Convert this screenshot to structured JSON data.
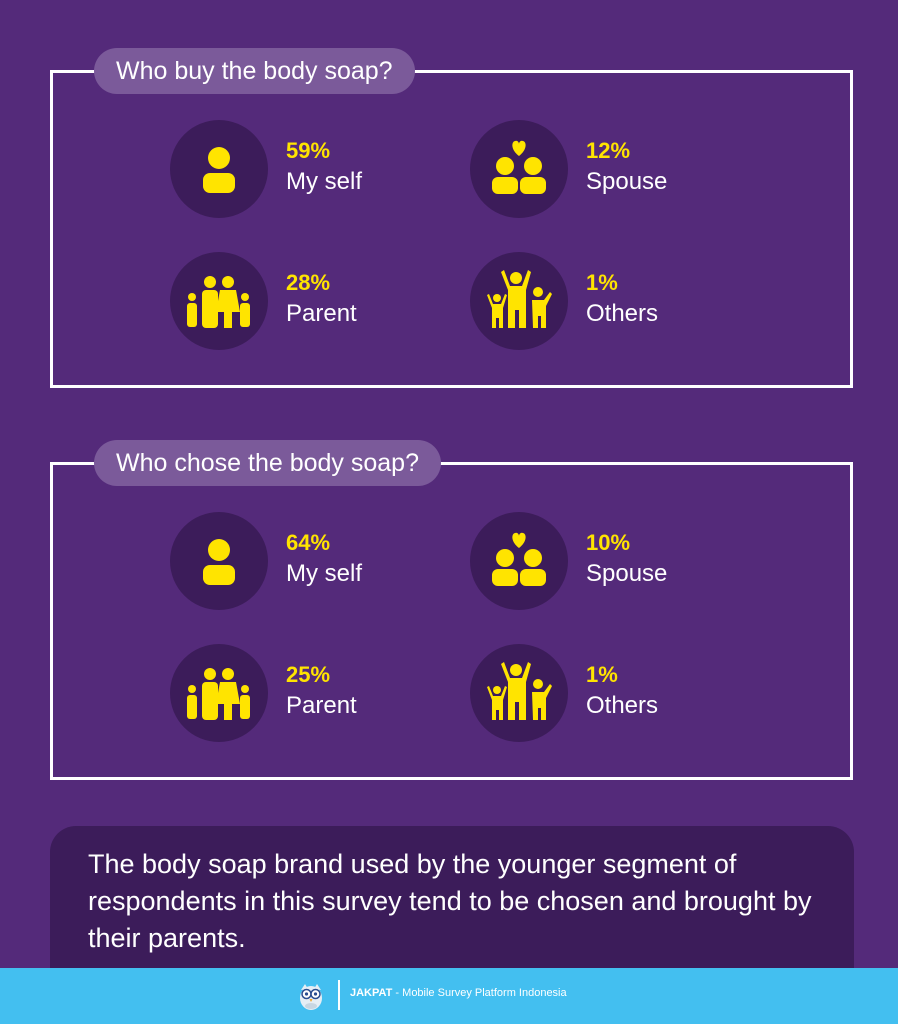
{
  "sections": [
    {
      "title": "Who buy the body soap?",
      "items": [
        {
          "percent": "59%",
          "label": "My self",
          "icon": "person-icon"
        },
        {
          "percent": "12%",
          "label": "Spouse",
          "icon": "couple-heart-icon"
        },
        {
          "percent": "28%",
          "label": "Parent",
          "icon": "family-icon"
        },
        {
          "percent": "1%",
          "label": "Others",
          "icon": "group-cheering-icon"
        }
      ]
    },
    {
      "title": "Who chose the body soap?",
      "items": [
        {
          "percent": "64%",
          "label": "My self",
          "icon": "person-icon"
        },
        {
          "percent": "10%",
          "label": "Spouse",
          "icon": "couple-heart-icon"
        },
        {
          "percent": "25%",
          "label": "Parent",
          "icon": "family-icon"
        },
        {
          "percent": "1%",
          "label": "Others",
          "icon": "group-cheering-icon"
        }
      ]
    }
  ],
  "conclusion": "The body soap brand used by the younger segment of respondents in this survey tend to be chosen and brought by their parents.",
  "footer": {
    "brand": "JAKPAT",
    "tagline": " - Mobile Survey Platform Indonesia"
  },
  "colors": {
    "background": "#542a7a",
    "icon_circle": "#3c1c5a",
    "accent_yellow": "#ffe400",
    "pill": "#7b5a9a",
    "footer": "#43bff0"
  }
}
